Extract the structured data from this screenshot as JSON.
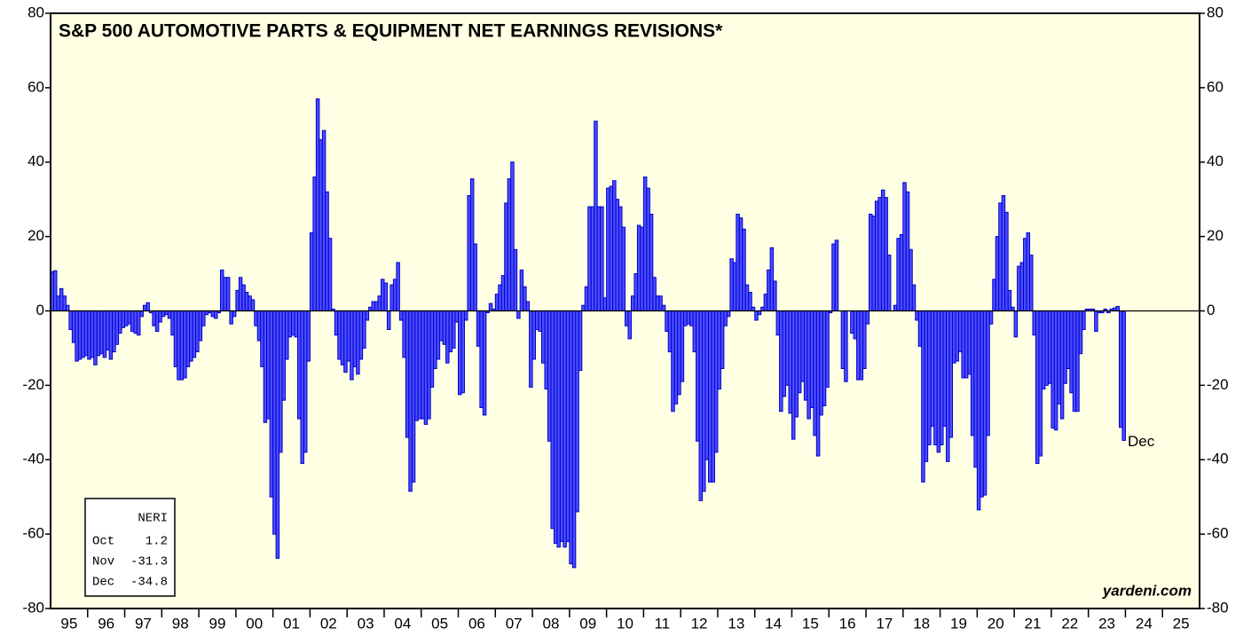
{
  "chart_data": {
    "type": "bar",
    "title": "S&P 500 AUTOMOTIVE PARTS & EQUIPMENT NET EARNINGS REVISIONS*",
    "source": "yardeni.com",
    "annotation": "Dec",
    "summary_title": "NERI",
    "summary_months": [
      "Oct",
      "Nov",
      "Dec"
    ],
    "categories": [
      "95",
      "96",
      "97",
      "98",
      "99",
      "00",
      "01",
      "02",
      "03",
      "04",
      "05",
      "06",
      "07",
      "08",
      "09",
      "10",
      "11",
      "12",
      "13",
      "14",
      "15",
      "16",
      "17",
      "18",
      "19",
      "20",
      "21",
      "22",
      "23",
      "24",
      "25"
    ],
    "values": [
      [
        10.5,
        10.8,
        4,
        6,
        4,
        1.5,
        -5,
        -8.5,
        -13.5,
        -13,
        -12.5,
        -12
      ],
      [
        -13,
        -12.5,
        -14.5,
        -12,
        -11.5,
        -12.5,
        -10.5,
        -13,
        -11,
        -9,
        -6,
        -4.5
      ],
      [
        -4,
        -3.5,
        -5.5,
        -6,
        -6.5,
        -1.5,
        1.5,
        2.2,
        -0.5,
        -4,
        -5.5,
        -3
      ],
      [
        -1.5,
        -1,
        -2,
        -6.5,
        -15,
        -18.5,
        -18.5,
        -18,
        -15,
        -13.5,
        -12.5,
        -11
      ],
      [
        -8,
        -4,
        -1,
        -0.5,
        -1.5,
        -2,
        -0.5,
        11,
        9,
        9,
        -3.5,
        -1.5
      ],
      [
        5.5,
        9,
        7,
        5,
        4,
        3,
        -4,
        -8,
        -15,
        -30,
        -29,
        -50
      ],
      [
        -60,
        -66.5,
        -38,
        -24,
        -13,
        -7,
        -6.5,
        -7,
        -29,
        -41,
        -38,
        -13.5
      ],
      [
        21,
        36,
        57,
        46,
        48.5,
        32,
        19.5,
        0.5,
        -6.5,
        -13,
        -14.5,
        -16.5
      ],
      [
        -13.5,
        -18.5,
        -15,
        -17,
        -13,
        -10,
        -2.5,
        1,
        2.5,
        2.5,
        4,
        8.5
      ],
      [
        7.5,
        -5,
        7,
        8.5,
        13,
        -2.5,
        -12.5,
        -34,
        -48.5,
        -46,
        -29.5,
        -29
      ],
      [
        -29,
        -30.5,
        -29,
        -20.5,
        -15.5,
        -13,
        -8,
        -9,
        -14,
        -11,
        -10,
        -3
      ],
      [
        -22.5,
        -22,
        -2.5,
        31,
        35.5,
        18,
        -9.5,
        -26,
        -28,
        -0.5,
        2,
        0.5
      ],
      [
        4.5,
        7,
        9.5,
        29,
        35.5,
        40,
        16.5,
        -2,
        11,
        6.5,
        2.5,
        -20.5
      ],
      [
        -13,
        -5,
        -5.5,
        -14,
        -21,
        -35,
        -58.5,
        -62.5,
        -63.5,
        -62,
        -63.5,
        -62
      ],
      [
        -68,
        -69,
        -54,
        -16,
        1.5,
        6.5,
        28,
        28,
        51,
        28,
        28,
        3.5
      ],
      [
        33,
        33.5,
        35,
        30,
        28,
        22.5,
        -4,
        -7.5,
        4,
        10,
        23,
        22.5
      ],
      [
        36,
        33,
        26,
        9,
        4,
        4,
        1.5,
        -5.5,
        -11,
        -27,
        -25,
        -22.5
      ],
      [
        -19,
        -4,
        -3.5,
        -4,
        -11,
        -35,
        -51,
        -48.5,
        -40,
        -46,
        -46,
        -38
      ],
      [
        -21,
        -15.5,
        -4,
        -1.5,
        14,
        13,
        26,
        25,
        22,
        7,
        5,
        1
      ],
      [
        -2.5,
        -1,
        1,
        4.5,
        11,
        17,
        8,
        -6.5,
        -27,
        -23,
        -20,
        -27.5
      ],
      [
        -34.5,
        -28.5,
        -22,
        -19,
        -24,
        -29,
        -26,
        -33.5,
        -39,
        -28,
        -25.5,
        -20.5
      ],
      [
        -0.5,
        18,
        19,
        0,
        -15.5,
        -19,
        0,
        -6,
        -7.5,
        -18.5,
        -18.5,
        -15.5
      ],
      [
        -3.5,
        26,
        25.5,
        29.5,
        30.5,
        32.5,
        30.5,
        15,
        0,
        1.5,
        19.5,
        20.5
      ],
      [
        34.5,
        32,
        16.5,
        7,
        -2.5,
        -9.5,
        -46,
        -40.5,
        -36,
        -31,
        -36,
        -38
      ],
      [
        -36,
        -31,
        -40.5,
        -34,
        -14,
        -13.5,
        -11,
        -18,
        -18,
        -17,
        -33.5,
        -42
      ],
      [
        -53.5,
        -50,
        -49.5,
        -33.5,
        -3.5,
        8.5,
        20,
        29,
        31,
        26.5,
        5.5,
        1
      ],
      [
        -7,
        12,
        13,
        19.5,
        21,
        15,
        -6.5,
        -41,
        -39,
        -21,
        -20,
        -19.5
      ],
      [
        -31.5,
        -32,
        -25,
        -29,
        -19.5,
        -15.5,
        -22,
        -27,
        -27,
        -11.5,
        -5,
        0.5
      ],
      [
        0.5,
        0.5,
        -5.5,
        -0.5,
        -0.5,
        0.5,
        -0.5,
        0.5,
        0.8,
        1.2,
        -31.3,
        -34.8
      ],
      [],
      []
    ],
    "color": "#4d4dff",
    "edge_color": "#0000cc",
    "background": "#ffffe3",
    "ylim": [
      -80,
      80
    ],
    "yticks": [
      -80,
      -60,
      -40,
      -20,
      0,
      20,
      40,
      60,
      80
    ]
  }
}
